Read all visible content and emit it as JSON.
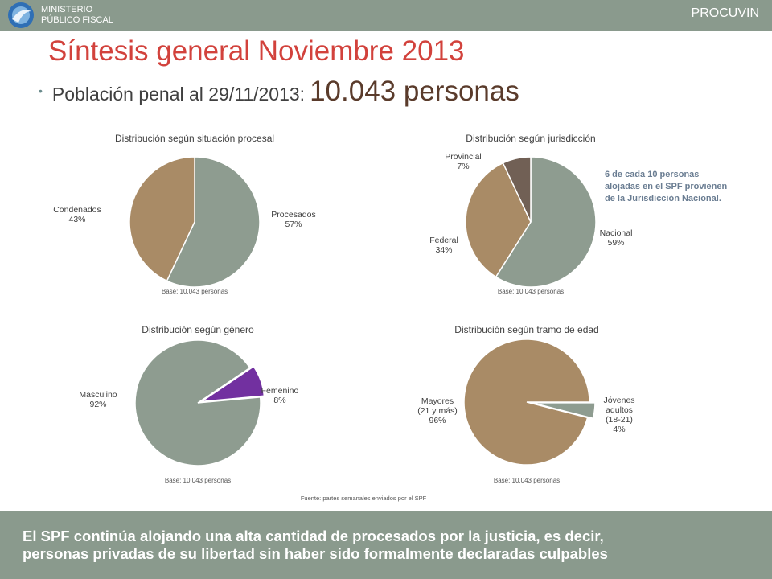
{
  "header": {
    "ministry_line1": "MINISTERIO",
    "ministry_line2": "PÚBLICO FISCAL",
    "brand": "PROCUVIN",
    "bar_color": "#8a9a8d"
  },
  "title": "Síntesis general Noviembre 2013",
  "subtitle": {
    "label": "Población penal al 29/11/2013:",
    "value": "10.043 personas"
  },
  "note": "6 de cada 10 personas alojadas en el SPF provienen de la Jurisdicción Nacional.",
  "note_lines": [
    "6 de cada 10 personas",
    "alojadas en el SPF provienen",
    "de la Jurisdicción Nacional."
  ],
  "source": "Fuente: partes semanales enviados por el SPF",
  "footer": {
    "line1": "El SPF continúa alojando una alta cantidad de procesados por la justicia, es decir,",
    "line2": "personas privadas de su libertad sin haber sido formalmente declaradas culpables"
  },
  "chart_data": [
    {
      "type": "pie",
      "title": "Distribución según situación procesal",
      "base": "Base: 10.043 personas",
      "slices": [
        {
          "name": "Procesados",
          "value": 57,
          "label": "57%",
          "color": "#8e9c90"
        },
        {
          "name": "Condenados",
          "value": 43,
          "label": "43%",
          "color": "#a98b66"
        }
      ]
    },
    {
      "type": "pie",
      "title": "Distribución según jurisdicción",
      "base": "Base: 10.043 personas",
      "slices": [
        {
          "name": "Nacional",
          "value": 59,
          "label": "59%",
          "color": "#8e9c90"
        },
        {
          "name": "Federal",
          "value": 34,
          "label": "34%",
          "color": "#a98b66"
        },
        {
          "name": "Provincial",
          "value": 7,
          "label": "7%",
          "color": "#716055"
        }
      ]
    },
    {
      "type": "pie",
      "title": "Distribución según género",
      "base": "Base: 10.043 personas",
      "slices": [
        {
          "name": "Femenino",
          "value": 8,
          "label": "8%",
          "color": "#7230a0"
        },
        {
          "name": "Masculino",
          "value": 92,
          "label": "92%",
          "color": "#8e9c90"
        }
      ]
    },
    {
      "type": "pie",
      "title": "Distribución según tramo de edad",
      "base": "Base: 10.043 personas",
      "slices": [
        {
          "name": "Jóvenes adultos (18-21)",
          "value": 4,
          "label": "4%",
          "color": "#8e9c90"
        },
        {
          "name": "Mayores (21 y más)",
          "value": 96,
          "label": "96%",
          "color": "#a98b66"
        }
      ]
    }
  ]
}
